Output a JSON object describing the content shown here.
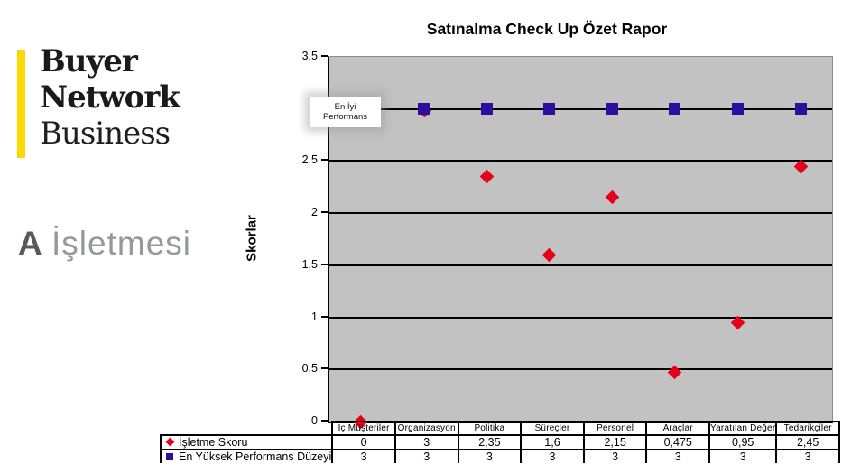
{
  "branding": {
    "logo_line1": "Buyer",
    "logo_line2": "Network",
    "logo_line3": "Business",
    "accent_yellow": "#FFD800",
    "company_prefix": "A",
    "company_name": "İşletmesi"
  },
  "chart_data": {
    "type": "scatter",
    "title": "Satınalma Check Up Özet Rapor",
    "ylabel": "Skorlar",
    "ylim": [
      0,
      3.5
    ],
    "ytick_step": 0.5,
    "ytick_labels": [
      "0",
      "0,5",
      "1",
      "1,5",
      "2",
      "2,5",
      "3",
      "3,5"
    ],
    "grid": true,
    "plot_bg": "#C2C2C2",
    "annotation": {
      "line1": "En İyi",
      "line2": "Performans"
    },
    "categories": [
      "İç Müşteriler",
      "Organizasyon",
      "Politika",
      "Süreçler",
      "Personel",
      "Araçlar",
      "Yaratılan  Değer",
      "Tedarikçiler"
    ],
    "series": [
      {
        "name": "İşletme Skoru",
        "marker": "diamond",
        "color": "#E60018",
        "values": [
          0,
          3,
          2.35,
          1.6,
          2.15,
          0.475,
          0.95,
          2.45
        ],
        "display_values": [
          "0",
          "3",
          "2,35",
          "1,6",
          "2,15",
          "0,475",
          "0,95",
          "2,45"
        ]
      },
      {
        "name": "En Yüksek Performans Düzeyi",
        "marker": "square",
        "color": "#2E0E9E",
        "values": [
          3,
          3,
          3,
          3,
          3,
          3,
          3,
          3
        ],
        "display_values": [
          "3",
          "3",
          "3",
          "3",
          "3",
          "3",
          "3",
          "3"
        ]
      }
    ]
  }
}
